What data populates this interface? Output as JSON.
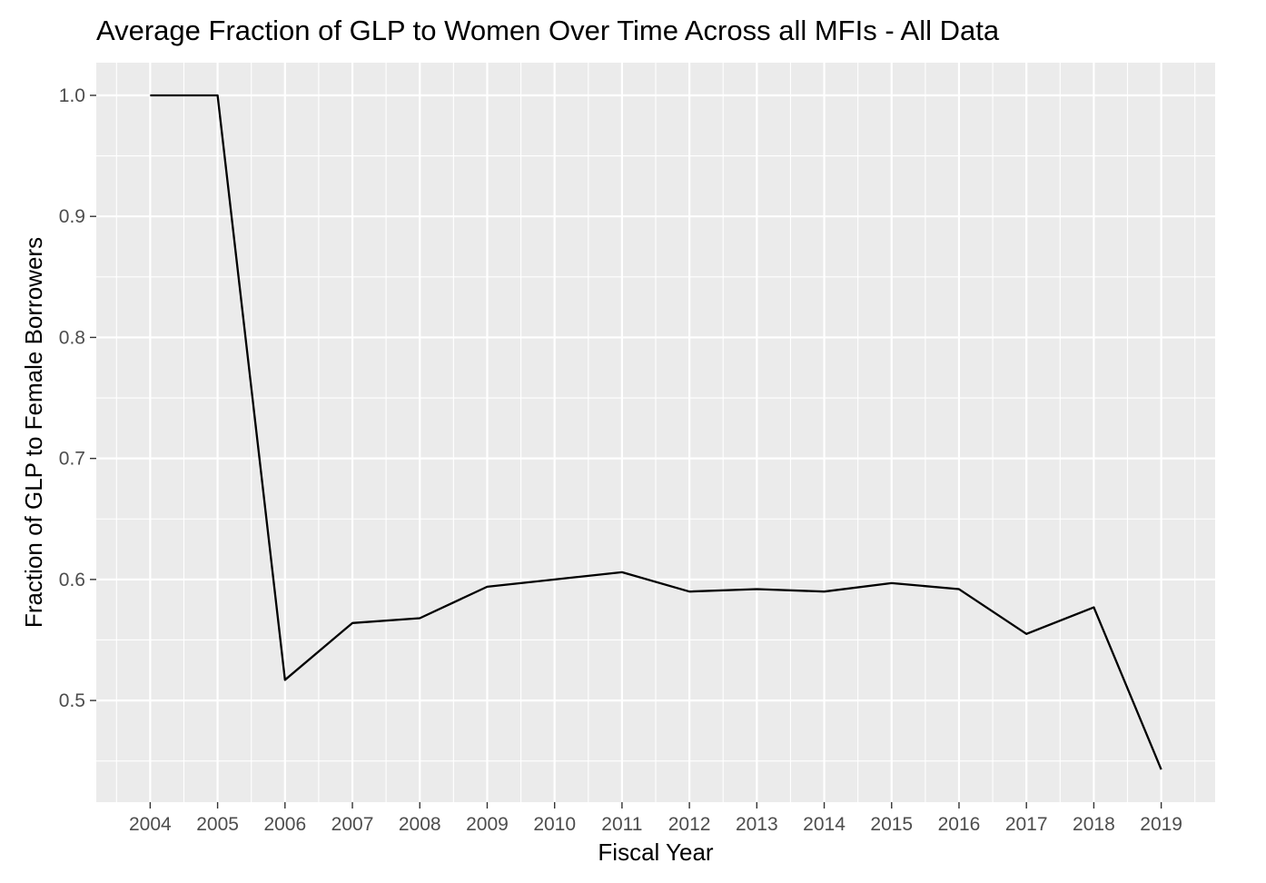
{
  "chart_data": {
    "type": "line",
    "title": "Average Fraction of GLP to Women Over Time Across all MFIs - All Data",
    "xlabel": "Fiscal Year",
    "ylabel": "Fraction of GLP to Female Borrowers",
    "x": [
      2004,
      2005,
      2006,
      2007,
      2008,
      2009,
      2010,
      2011,
      2012,
      2013,
      2014,
      2015,
      2016,
      2017,
      2018,
      2019
    ],
    "series": [
      {
        "values": [
          1.0,
          1.0,
          0.517,
          0.564,
          0.568,
          0.594,
          0.6,
          0.606,
          0.59,
          0.592,
          0.59,
          0.597,
          0.592,
          0.555,
          0.577,
          0.443
        ]
      }
    ],
    "xlim": [
      2003.2,
      2019.8
    ],
    "ylim": [
      0.416,
      1.027
    ],
    "x_ticks": [
      "2004",
      "2005",
      "2006",
      "2007",
      "2008",
      "2009",
      "2010",
      "2011",
      "2012",
      "2013",
      "2014",
      "2015",
      "2016",
      "2017",
      "2018",
      "2019"
    ],
    "y_ticks": [
      "0.5",
      "0.6",
      "0.7",
      "0.8",
      "0.9",
      "1.0"
    ],
    "grid": true,
    "legend": "none",
    "colors": {
      "panel": "#ebebeb",
      "grid": "#ffffff",
      "line": "#000000",
      "tick_text": "#4d4d4d"
    }
  }
}
